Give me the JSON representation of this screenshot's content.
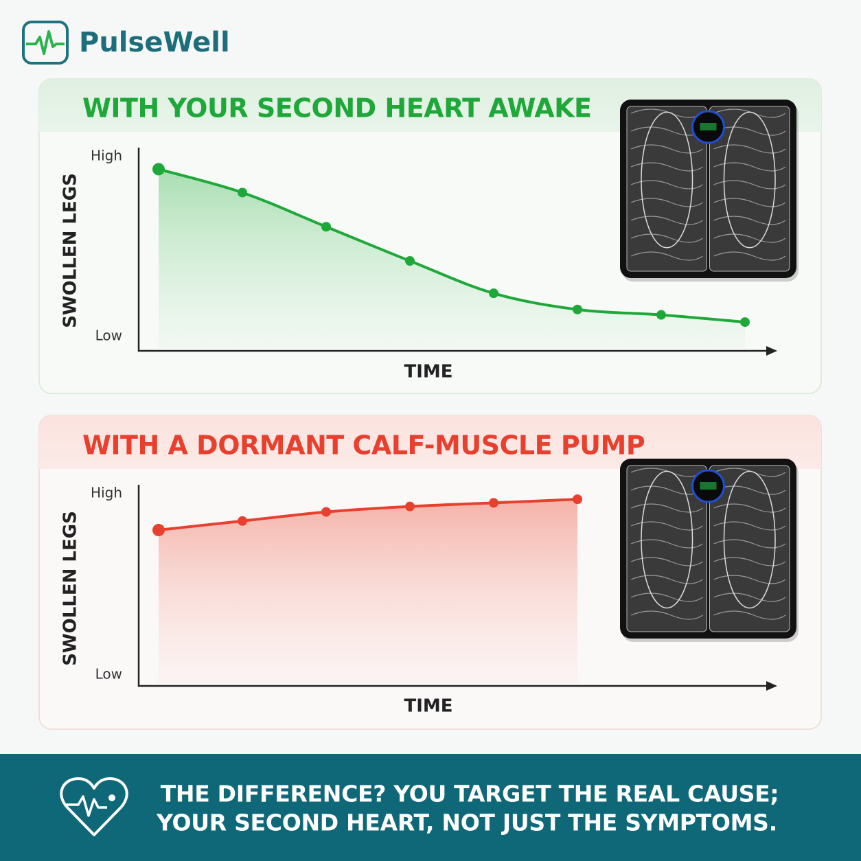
{
  "header": {
    "brand": "PulseWell"
  },
  "chart_data": [
    {
      "type": "line",
      "title": "WITH YOUR SECOND HEART AWAKE",
      "ylabel": "SWOLLEN LEGS",
      "xlabel": "TIME",
      "categories": [
        null,
        null,
        null,
        null,
        null,
        null,
        null,
        null
      ],
      "values": [
        93,
        80,
        61,
        42,
        24,
        15,
        12,
        8
      ],
      "color": "#1fa83a",
      "ylim": [
        -8,
        105
      ],
      "yticks": [
        {
          "value": 0,
          "label": "Low"
        },
        {
          "value": 100,
          "label": "High"
        }
      ]
    },
    {
      "type": "line",
      "title": "WITH A DORMANT CALF-MUSCLE PUMP",
      "ylabel": "SWOLLEN LEGS",
      "xlabel": "TIME",
      "categories": [
        null,
        null,
        null,
        null,
        null,
        null,
        null,
        null
      ],
      "values": [
        80,
        85,
        90,
        93,
        95,
        97,
        null,
        null
      ],
      "color": "#e8402e",
      "ylim": [
        -6,
        105
      ],
      "yticks": [
        {
          "value": 0,
          "label": "Low"
        },
        {
          "value": 100,
          "label": "High"
        }
      ]
    }
  ],
  "footer": {
    "lines": [
      "THE DIFFERENCE? YOU TARGET THE REAL CAUSE;",
      "YOUR SECOND HEART, NOT JUST THE SYMPTOMS."
    ]
  }
}
